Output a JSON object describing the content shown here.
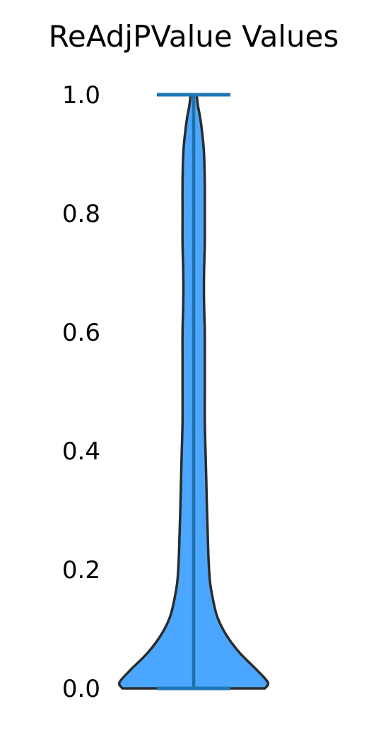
{
  "chart_data": {
    "type": "violin",
    "title": "ReAdjPValue Values",
    "xlabel": "",
    "ylabel": "",
    "ylim": [
      0.0,
      1.0
    ],
    "yticks": [
      "0.0",
      "0.2",
      "0.4",
      "0.6",
      "0.8",
      "1.0"
    ],
    "grid": false,
    "legend": "none",
    "colors": {
      "fill": "#4ba6ff",
      "outline": "#2b2b2b",
      "median_and_extrema": "#1f6fa8",
      "extrema_bars": "#1f77b4"
    },
    "min": 0.0,
    "max": 1.0,
    "median": "not shown",
    "density_profile": {
      "y": [
        0.0,
        0.01,
        0.03,
        0.06,
        0.09,
        0.12,
        0.15,
        0.18,
        0.22,
        0.26,
        0.3,
        0.35,
        0.4,
        0.45,
        0.5,
        0.55,
        0.6,
        0.65,
        0.7,
        0.75,
        0.8,
        0.85,
        0.9,
        0.93,
        0.96,
        0.98,
        1.0
      ],
      "relative_width": [
        0.96,
        1.0,
        0.86,
        0.62,
        0.44,
        0.32,
        0.26,
        0.22,
        0.2,
        0.19,
        0.18,
        0.17,
        0.16,
        0.15,
        0.15,
        0.15,
        0.15,
        0.14,
        0.14,
        0.15,
        0.15,
        0.15,
        0.14,
        0.12,
        0.09,
        0.06,
        0.04
      ]
    }
  }
}
